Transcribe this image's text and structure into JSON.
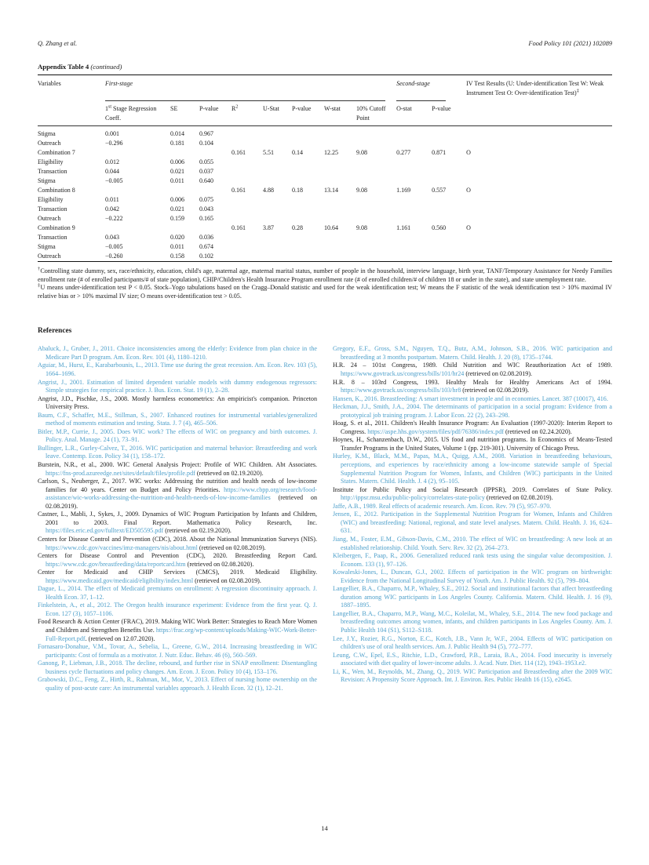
{
  "page": {
    "running_head_left": "Q. Zhang et al.",
    "running_head_right": "Food Policy 101 (2021) 102089",
    "page_number": "14"
  },
  "appendix_table": {
    "title": "Appendix Table 4",
    "continued": "(continued)",
    "header": {
      "variables": "Variables",
      "first_stage": "First-stage",
      "second_stage": "Second-stage",
      "iv_results": "IV Test Results (U: Under-identification Test W: Weak Instrument Test O: Over-identification Test)",
      "iv_results_marker": "‡"
    },
    "subheaders": [
      "1^st^ Stage Regression Coeff.",
      "SE",
      "P-value",
      "R^2^",
      "U-Stat",
      "P-value",
      "W-stat",
      "10% Cutoff Point",
      "O-stat",
      "P-value"
    ],
    "rows": [
      [
        "Stigma",
        "0.001",
        "0.014",
        "0.967",
        "",
        "",
        "",
        "",
        "",
        "",
        "",
        ""
      ],
      [
        "Outreach",
        "−0.296",
        "0.181",
        "0.104",
        "",
        "",
        "",
        "",
        "",
        "",
        "",
        ""
      ],
      [
        "Combination 7",
        "",
        "",
        "",
        "0.161",
        "5.51",
        "0.14",
        "12.25",
        "9.08",
        "0.277",
        "0.871",
        "O"
      ],
      [
        "Eligibility",
        "0.012",
        "0.006",
        "0.055",
        "",
        "",
        "",
        "",
        "",
        "",
        "",
        ""
      ],
      [
        "Transaction",
        "0.044",
        "0.021",
        "0.037",
        "",
        "",
        "",
        "",
        "",
        "",
        "",
        ""
      ],
      [
        "Stigma",
        "−0.005",
        "0.011",
        "0.640",
        "",
        "",
        "",
        "",
        "",
        "",
        "",
        ""
      ],
      [
        "Combination 8",
        "",
        "",
        "",
        "0.161",
        "4.88",
        "0.18",
        "13.14",
        "9.08",
        "1.169",
        "0.557",
        "O"
      ],
      [
        "Eligibility",
        "0.011",
        "0.006",
        "0.075",
        "",
        "",
        "",
        "",
        "",
        "",
        "",
        ""
      ],
      [
        "Transaction",
        "0.042",
        "0.021",
        "0.043",
        "",
        "",
        "",
        "",
        "",
        "",
        "",
        ""
      ],
      [
        "Outreach",
        "−0.222",
        "0.159",
        "0.165",
        "",
        "",
        "",
        "",
        "",
        "",
        "",
        ""
      ],
      [
        "Combination 9",
        "",
        "",
        "",
        "0.161",
        "3.87",
        "0.28",
        "10.64",
        "9.08",
        "1.161",
        "0.560",
        "O"
      ],
      [
        "Transaction",
        "0.043",
        "0.020",
        "0.036",
        "",
        "",
        "",
        "",
        "",
        "",
        "",
        ""
      ],
      [
        "Stigma",
        "−0.005",
        "0.011",
        "0.674",
        "",
        "",
        "",
        "",
        "",
        "",
        "",
        ""
      ],
      [
        "Outreach",
        "−0.260",
        "0.158",
        "0.102",
        "",
        "",
        "",
        "",
        "",
        "",
        "",
        ""
      ]
    ],
    "footnotes": [
      {
        "marker": "†",
        "text": "Controlling state dummy, sex, race/ethnicity, education, child's age, maternal age, maternal marital status, number of people in the household, interview language, birth year, TANF/Temporary Assistance for Needy Families enrollment rate (# of enrolled participants/# of state population), CHIP/Children's Health Insurance Program enrollment rate (# of enrolled children/# of children 18 or under in the state), and state unemployment rate."
      },
      {
        "marker": "‡",
        "text": "U means under-identification test P < 0.05. Stock–Yogo tabulations based on the Cragg–Donald statistic and used for the weak identification test; W means the F statistic of the weak identification test > 10% maximal IV relative bias or > 10% maximal IV size; O means over-identification test > 0.05."
      }
    ]
  },
  "references": {
    "heading": "References",
    "left": [
      [
        {
          "k": "link",
          "t": "Abaluck, J., Gruber, J., 2011. Choice inconsistencies among the elderly: Evidence from plan choice in the Medicare Part D program. Am. Econ. Rev. 101 (4), 1180–1210."
        }
      ],
      [
        {
          "k": "link",
          "t": "Aguiar, M., Hurst, E., Karabarbounis, L., 2013. Time use during the great recession. Am. Econ. Rev. 103 (5), 1664–1696."
        }
      ],
      [
        {
          "k": "link",
          "t": "Angrist, J., 2001. Estimation of limited dependent variable models with dummy endogenous regressors: Simple strategies for empirical practice. J. Bus. Econ. Stat. 19 (1), 2–28."
        }
      ],
      [
        {
          "k": "plain",
          "t": "Angrist, J.D., Pischke, J.S., 2008. Mostly harmless econometrics: An empiricist's companion. Princeton University Press."
        }
      ],
      [
        {
          "k": "link",
          "t": "Baum, C.F., Schaffer, M.E., Stillman, S., 2007. Enhanced routines for instrumental variables/generalized method of moments estimation and testing. Stata. J. 7 (4), 465–506."
        }
      ],
      [
        {
          "k": "link",
          "t": "Bitler, M.P., Currie, J., 2005. Does WIC work? The effects of WIC on pregnancy and birth outcomes. J. Policy. Anal. Manage. 24 (1), 73–91."
        }
      ],
      [
        {
          "k": "link",
          "t": "Bullinger, L.R., Gurley-Calvez, T., 2016. WIC participation and maternal behavior: Breastfeeding and work leave. Contemp. Econ. Policy 34 (1), 158–172."
        }
      ],
      [
        {
          "k": "plain",
          "t": "Burstein, N.R., et al., 2000. WIC General Analysis Project: Profile of WIC Children. Abt Associates. "
        },
        {
          "k": "link",
          "t": "https://fns-prod.azureedge.net/sites/default/files/profile.pdf"
        },
        {
          "k": "plain",
          "t": " (retrieved on 02.19.2020)."
        }
      ],
      [
        {
          "k": "plain",
          "t": "Carlson, S., Neuberger, Z., 2017. WIC works: Addressing the nutrition and health needs of low-income families for 40 years. Center on Budget and Policy Priorities. "
        },
        {
          "k": "link",
          "t": "https://www.cbpp.org/research/food-assistance/wic-works-addressing-the-nutrition-and-health-needs-of-low-income-families"
        },
        {
          "k": "plain",
          "t": " (retrieved on 02.08.2019)."
        }
      ],
      [
        {
          "k": "plain",
          "t": "Castner, L., Mabli, J., Sykes, J., 2009. Dynamics of WIC Program Participation by Infants and Children, 2001 to 2003. Final Report. Mathematica Policy Research, Inc. "
        },
        {
          "k": "link",
          "t": "https://files.eric.ed.gov/fulltext/ED505595.pdf"
        },
        {
          "k": "plain",
          "t": " (retrieved on 02.19.2020)."
        }
      ],
      [
        {
          "k": "plain",
          "t": "Centers for Disease Control and Prevention (CDC), 2018. About the National Immunization Surveys (NIS). "
        },
        {
          "k": "link",
          "t": "https://www.cdc.gov/vaccines/imz-managers/nis/about.html"
        },
        {
          "k": "plain",
          "t": " (retrieved on 02.08.2019)."
        }
      ],
      [
        {
          "k": "plain",
          "t": "Centers for Disease Control and Prevention (CDC), 2020. Breastfeeding Report Card. "
        },
        {
          "k": "link",
          "t": "https://www.cdc.gov/breastfeeding/data/reportcard.htm"
        },
        {
          "k": "plain",
          "t": " (retrieved on 02.08.2020)."
        }
      ],
      [
        {
          "k": "plain",
          "t": "Center for Medicaid and CHIP Services (CMCS), 2019. Medicaid Eligibility. "
        },
        {
          "k": "link",
          "t": "https://www.medicaid.gov/medicaid/eligibility/index.html"
        },
        {
          "k": "plain",
          "t": " (retrieved on 02.08.2019)."
        }
      ],
      [
        {
          "k": "link",
          "t": "Dague, L., 2014. The effect of Medicaid premiums on enrollment: A regression discontinuity approach. J. Health Econ. 37, 1–12."
        }
      ],
      [
        {
          "k": "link",
          "t": "Finkelstein, A., et al., 2012. The Oregon health insurance experiment: Evidence from the first year. Q. J. Econ. 127 (3), 1057–1106."
        }
      ],
      [
        {
          "k": "plain",
          "t": "Food Research & Action Center (FRAC), 2019. Making WIC Work Better: Strategies to Reach More Women and Children and Strengthen Benefits Use. "
        },
        {
          "k": "link",
          "t": "https://frac.org/wp-content/uploads/Making-WIC-Work-Better-Full-Report.pdf"
        },
        {
          "k": "plain",
          "t": ". (retrieved on 12.07.2020)."
        }
      ],
      [
        {
          "k": "link",
          "t": "Fornasaro-Donahue, V.M., Tovar, A., Sebelia, L., Greene, G.W., 2014. Increasing breastfeeding in WIC participants: Cost of formula as a motivator. J. Nutr. Educ. Behav. 46 (6), 560–569."
        }
      ],
      [
        {
          "k": "link",
          "t": "Ganong, P., Liebman, J.B., 2018. The decline, rebound, and further rise in SNAP enrollment: Disentangling business cycle fluctuations and policy changes. Am. Econ. J. Econ. Policy 10 (4), 153–176."
        }
      ],
      [
        {
          "k": "link",
          "t": "Grabowski, D.C., Feng, Z., Hirth, R., Rahman, M., Mor, V., 2013. Effect of nursing home ownership on the quality of post-acute care: An instrumental variables approach. J. Health Econ. 32 (1), 12–21."
        }
      ]
    ],
    "right": [
      [
        {
          "k": "link",
          "t": "Gregory, E.F., Gross, S.M., Nguyen, T.Q., Butz, A.M., Johnson, S.B., 2016. WIC participation and breastfeeding at 3 months postpartum. Matern. Child. Health. J. 20 (8), 1735–1744."
        }
      ],
      [
        {
          "k": "plain",
          "t": "H.R. 24 – 101st Congress, 1989. Child Nutrition and WIC Reauthorization Act of 1989. "
        },
        {
          "k": "link",
          "t": "https://www.govtrack.us/congress/bills/101/hr24"
        },
        {
          "k": "plain",
          "t": " (retrieved on 02.08.2019)."
        }
      ],
      [
        {
          "k": "plain",
          "t": "H.R. 8 – 103rd Congress, 1993. Healthy Meals for Healthy Americans Act of 1994. "
        },
        {
          "k": "link",
          "t": "https://www.govtrack.us/congress/bills/103/hr8"
        },
        {
          "k": "plain",
          "t": " (retrieved on 02.08.2019)."
        }
      ],
      [
        {
          "k": "link",
          "t": "Hansen, K., 2016. Breastfeeding: A smart investment in people and in economies. Lancet. 387 (10017), 416."
        }
      ],
      [
        {
          "k": "link",
          "t": "Heckman, J.J., Smith, J.A., 2004. The determinants of participation in a social program: Evidence from a prototypical job training program. J. Labor Econ. 22 (2), 243–298."
        }
      ],
      [
        {
          "k": "plain",
          "t": "Hoag, S. et al., 2011. Children's Health Insurance Program: An Evaluation (1997-2020): Interim Report to Congress. "
        },
        {
          "k": "link",
          "t": "https://aspe.hhs.gov/system/files/pdf/76386/index.pdf"
        },
        {
          "k": "plain",
          "t": " (retrieved on 02.24.2020)."
        }
      ],
      [
        {
          "k": "plain",
          "t": "Hoynes, H., Schanzenbach, D.W., 2015. US food and nutrition programs. In Economics of Means-Tested Transfer Programs in the United States, Volume 1 (pp. 219-301). University of Chicago Press."
        }
      ],
      [
        {
          "k": "link",
          "t": "Hurley, K.M., Black, M.M., Papas, M.A., Quigg, A.M., 2008. Variation in breastfeeding behaviours, perceptions, and experiences by race/ethnicity among a low-income statewide sample of Special Supplemental Nutrition Program for Women, Infants, and Children (WIC) participants in the United States. Matern. Child. Health. J. 4 (2), 95–105."
        }
      ],
      [
        {
          "k": "plain",
          "t": "Institute for Public Policy and Social Research (IPPSR), 2019. Correlates of State Policy. "
        },
        {
          "k": "link",
          "t": "http://ippsr.msu.edu/public-policy/correlates-state-policy"
        },
        {
          "k": "plain",
          "t": " (retrieved on 02.08.2019)."
        }
      ],
      [
        {
          "k": "link",
          "t": "Jaffe, A.B., 1989. Real effects of academic research. Am. Econ. Rev. 79 (5), 957–970."
        }
      ],
      [
        {
          "k": "link",
          "t": "Jensen, E., 2012. Participation in the Supplemental Nutrition Program for Women, Infants and Children (WIC) and breastfeeding: National, regional, and state level analyses. Matern. Child. Health. J. 16, 624–631."
        }
      ],
      [
        {
          "k": "link",
          "t": "Jiang, M., Foster, E.M., Gibson-Davis, C.M., 2010. The effect of WIC on breastfeeding: A new look at an established relationship. Child. Youth. Serv. Rev. 32 (2), 264–273."
        }
      ],
      [
        {
          "k": "link",
          "t": "Kleibergen, F., Paap, R., 2006. Generalized reduced rank tests using the singular value decomposition. J. Econom. 133 (1), 97–126."
        }
      ],
      [
        {
          "k": "link",
          "t": "Kowaleski-Jones, L., Duncan, G.J., 2002. Effects of participation in the WIC program on birthweight: Evidence from the National Longitudinal Survey of Youth. Am. J. Public Health. 92 (5), 799–804."
        }
      ],
      [
        {
          "k": "link",
          "t": "Langellier, B.A., Chaparro, M.P., Whaley, S.E., 2012. Social and institutional factors that affect breastfeeding duration among WIC participants in Los Angeles County. California. Matern. Child. Health. J. 16 (9), 1887–1895."
        }
      ],
      [
        {
          "k": "link",
          "t": "Langellier, B.A., Chaparro, M.P., Wang, M.C., Koleilat, M., Whaley, S.E., 2014. The new food package and breastfeeding outcomes among women, infants, and children participants in Los Angeles County. Am. J. Public Health 104 (S1), S112–S118."
        }
      ],
      [
        {
          "k": "link",
          "t": "Lee, J.Y., Rozier, R.G., Norton, E.C., Kotch, J.B., Vann Jr, W.F., 2004. Effects of WIC participation on children's use of oral health services. Am. J. Public Health 94 (5), 772–777."
        }
      ],
      [
        {
          "k": "link",
          "t": "Leung, C.W., Epel, E.S., Ritchie, L.D., Crawford, P.B., Laraia, B.A., 2014. Food insecurity is inversely associated with diet quality of lower-income adults. J. Acad. Nutr. Diet. 114 (12), 1943–1953.e2."
        }
      ],
      [
        {
          "k": "link",
          "t": "Li, K., Wen, M., Reynolds, M., Zhang, Q., 2019. WIC Participation and Breastfeeding after the 2009 WIC Revision: A Propensity Score Approach. Int. J. Environ. Res. Public Health 16 (15), e2645."
        }
      ]
    ]
  }
}
